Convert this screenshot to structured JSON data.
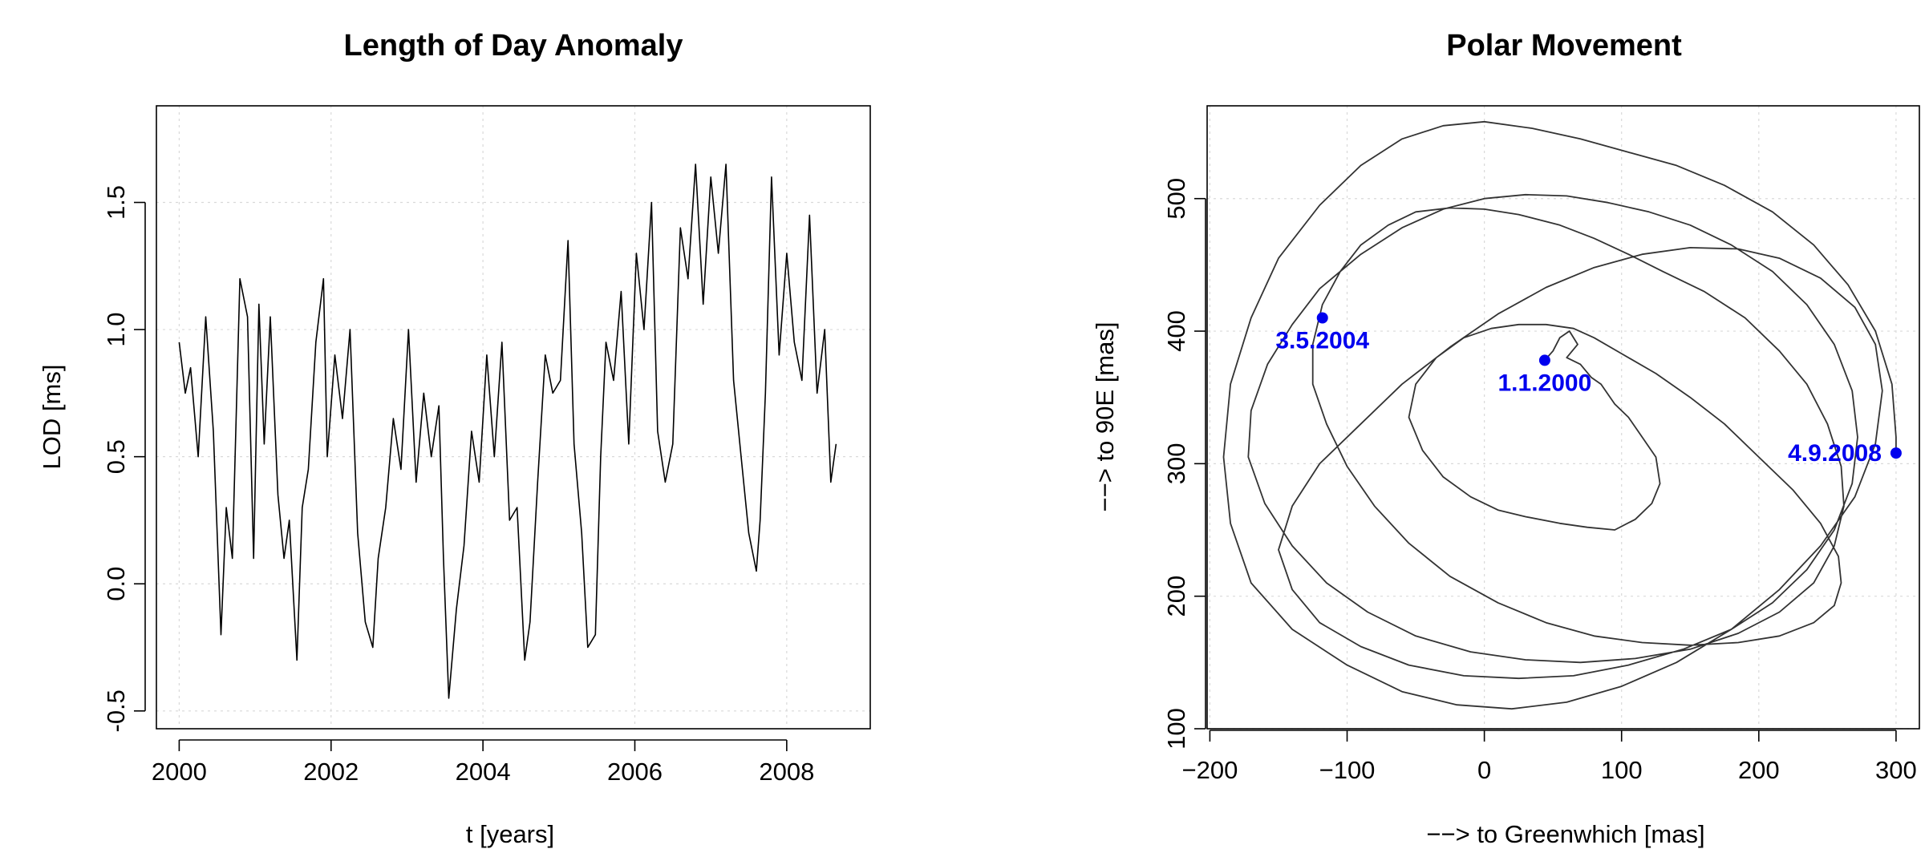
{
  "colors": {
    "annotation": "#0000ee",
    "line": "#000000"
  },
  "chart_data": [
    {
      "type": "line",
      "title": "Length of Day Anomaly",
      "xlabel": "t [years]",
      "ylabel": "LOD [ms]",
      "xlim": [
        1999.7,
        2009.1
      ],
      "ylim": [
        -0.57,
        1.88
      ],
      "xticks": [
        2000,
        2002,
        2004,
        2006,
        2008
      ],
      "yticks": [
        -0.5,
        0.0,
        0.5,
        1.0,
        1.5
      ],
      "ytick_labels": [
        "-0.5",
        "0.0",
        "0.5",
        "1.0",
        "1.5"
      ],
      "grid": true,
      "series": [
        {
          "x": [
            2000.0,
            2000.08,
            2000.15,
            2000.25,
            2000.35,
            2000.45,
            2000.55,
            2000.62,
            2000.7,
            2000.8,
            2000.9,
            2000.98,
            2001.05,
            2001.12,
            2001.2,
            2001.3,
            2001.38,
            2001.45,
            2001.55,
            2001.62,
            2001.7,
            2001.8,
            2001.9,
            2001.95,
            2002.05,
            2002.15,
            2002.25,
            2002.35,
            2002.45,
            2002.55,
            2002.62,
            2002.72,
            2002.82,
            2002.92,
            2003.02,
            2003.12,
            2003.22,
            2003.32,
            2003.42,
            2003.48,
            2003.55,
            2003.65,
            2003.75,
            2003.85,
            2003.95,
            2004.05,
            2004.15,
            2004.25,
            2004.35,
            2004.45,
            2004.55,
            2004.62,
            2004.72,
            2004.82,
            2004.92,
            2005.02,
            2005.12,
            2005.2,
            2005.3,
            2005.38,
            2005.48,
            2005.55,
            2005.62,
            2005.72,
            2005.82,
            2005.92,
            2006.02,
            2006.12,
            2006.22,
            2006.3,
            2006.4,
            2006.5,
            2006.6,
            2006.7,
            2006.8,
            2006.9,
            2007.0,
            2007.1,
            2007.2,
            2007.3,
            2007.4,
            2007.5,
            2007.6,
            2007.65,
            2007.72,
            2007.8,
            2007.9,
            2008.0,
            2008.1,
            2008.2,
            2008.3,
            2008.4,
            2008.5,
            2008.58,
            2008.65
          ],
          "y": [
            0.95,
            0.75,
            0.85,
            0.5,
            1.05,
            0.6,
            -0.2,
            0.3,
            0.1,
            1.2,
            1.05,
            0.1,
            1.1,
            0.55,
            1.05,
            0.35,
            0.1,
            0.25,
            -0.3,
            0.3,
            0.45,
            0.95,
            1.2,
            0.5,
            0.9,
            0.65,
            1.0,
            0.2,
            -0.15,
            -0.25,
            0.1,
            0.3,
            0.65,
            0.45,
            1.0,
            0.4,
            0.75,
            0.5,
            0.7,
            0.1,
            -0.45,
            -0.1,
            0.15,
            0.6,
            0.4,
            0.9,
            0.5,
            0.95,
            0.25,
            0.3,
            -0.3,
            -0.15,
            0.4,
            0.9,
            0.75,
            0.8,
            1.35,
            0.55,
            0.2,
            -0.25,
            -0.2,
            0.5,
            0.95,
            0.8,
            1.15,
            0.55,
            1.3,
            1.0,
            1.5,
            0.6,
            0.4,
            0.55,
            1.4,
            1.2,
            1.65,
            1.1,
            1.6,
            1.3,
            1.65,
            0.8,
            0.5,
            0.2,
            0.05,
            0.25,
            0.75,
            1.6,
            0.9,
            1.3,
            0.95,
            0.8,
            1.45,
            0.75,
            1.0,
            0.4,
            0.55
          ]
        }
      ]
    },
    {
      "type": "line",
      "title": "Polar Movement",
      "xlabel": "−−> to Greenwhich [mas]",
      "ylabel": "−−> to 90E [mas]",
      "xlim": [
        -202,
        317
      ],
      "ylim": [
        100,
        570
      ],
      "xticks": [
        -200,
        -100,
        0,
        100,
        200,
        300
      ],
      "xtick_labels": [
        "−200",
        "−100",
        "0",
        "100",
        "200",
        "300"
      ],
      "yticks": [
        100,
        200,
        300,
        400,
        500
      ],
      "ytick_labels": [
        "100",
        "200",
        "300",
        "400",
        "500"
      ],
      "grid": true,
      "series": [
        {
          "x": [
            44,
            50,
            55,
            62,
            68,
            60,
            70,
            78,
            85,
            95,
            105,
            115,
            125,
            128,
            122,
            110,
            95,
            75,
            55,
            30,
            10,
            -10,
            -30,
            -45,
            -55,
            -50,
            -35,
            -15,
            5,
            25,
            45,
            65,
            80,
            100,
            125,
            150,
            175,
            200,
            225,
            245,
            258,
            260,
            255,
            240,
            215,
            185,
            150,
            115,
            80,
            45,
            10,
            -25,
            -55,
            -80,
            -100,
            -115,
            -125,
            -125,
            -118,
            -105,
            -90,
            -70,
            -50,
            -25,
            0,
            25,
            55,
            80,
            105,
            130,
            160,
            190,
            215,
            235,
            250,
            260,
            262,
            255,
            240,
            215,
            185,
            150,
            110,
            70,
            30,
            -10,
            -50,
            -85,
            -115,
            -140,
            -160,
            -172,
            -170,
            -158,
            -140,
            -120,
            -90,
            -60,
            -30,
            0,
            30,
            60,
            90,
            120,
            150,
            180,
            210,
            235,
            255,
            268,
            272,
            268,
            255,
            235,
            210,
            180,
            145,
            105,
            65,
            25,
            -15,
            -55,
            -90,
            -120,
            -140,
            -150,
            -140,
            -120,
            -90,
            -60,
            -25,
            10,
            45,
            80,
            115,
            150,
            185,
            215,
            245,
            270,
            285,
            290,
            285,
            270,
            245,
            215,
            180,
            140,
            100,
            60,
            20,
            -20,
            -60,
            -100,
            -140,
            -170,
            -185,
            -190,
            -185,
            -170,
            -150,
            -120,
            -90,
            -60,
            -30,
            0,
            35,
            70,
            105,
            140,
            175,
            210,
            240,
            265,
            285,
            297,
            300,
            300
          ],
          "y": [
            378,
            385,
            395,
            400,
            390,
            380,
            375,
            365,
            360,
            345,
            335,
            320,
            305,
            285,
            270,
            258,
            250,
            252,
            255,
            260,
            265,
            275,
            290,
            310,
            335,
            360,
            380,
            395,
            402,
            405,
            405,
            402,
            395,
            383,
            368,
            350,
            330,
            305,
            280,
            255,
            230,
            210,
            193,
            180,
            170,
            165,
            163,
            165,
            170,
            180,
            195,
            215,
            240,
            268,
            298,
            330,
            360,
            390,
            420,
            445,
            465,
            480,
            490,
            493,
            492,
            488,
            480,
            470,
            458,
            445,
            430,
            410,
            385,
            360,
            330,
            298,
            268,
            238,
            210,
            188,
            172,
            160,
            153,
            150,
            152,
            158,
            170,
            188,
            210,
            238,
            270,
            305,
            340,
            375,
            405,
            432,
            458,
            478,
            492,
            500,
            503,
            502,
            497,
            490,
            480,
            465,
            445,
            420,
            390,
            355,
            320,
            285,
            250,
            220,
            195,
            175,
            160,
            148,
            140,
            138,
            140,
            148,
            162,
            180,
            205,
            235,
            268,
            300,
            330,
            360,
            388,
            413,
            433,
            448,
            458,
            463,
            462,
            455,
            440,
            418,
            390,
            355,
            315,
            275,
            238,
            205,
            175,
            150,
            132,
            120,
            115,
            118,
            128,
            148,
            175,
            210,
            255,
            305,
            360,
            410,
            455,
            495,
            525,
            545,
            555,
            558,
            553,
            545,
            535,
            525,
            510,
            490,
            465,
            435,
            400,
            360,
            320,
            308
          ],
          "annotations": [
            {
              "x": 44,
              "y": 378,
              "label": "1.1.2000",
              "anchor": "below"
            },
            {
              "x": -118,
              "y": 410,
              "label": "3.5.2004",
              "anchor": "below"
            },
            {
              "x": 300,
              "y": 308,
              "label": "4.9.2008",
              "anchor": "left"
            }
          ]
        }
      ]
    }
  ]
}
